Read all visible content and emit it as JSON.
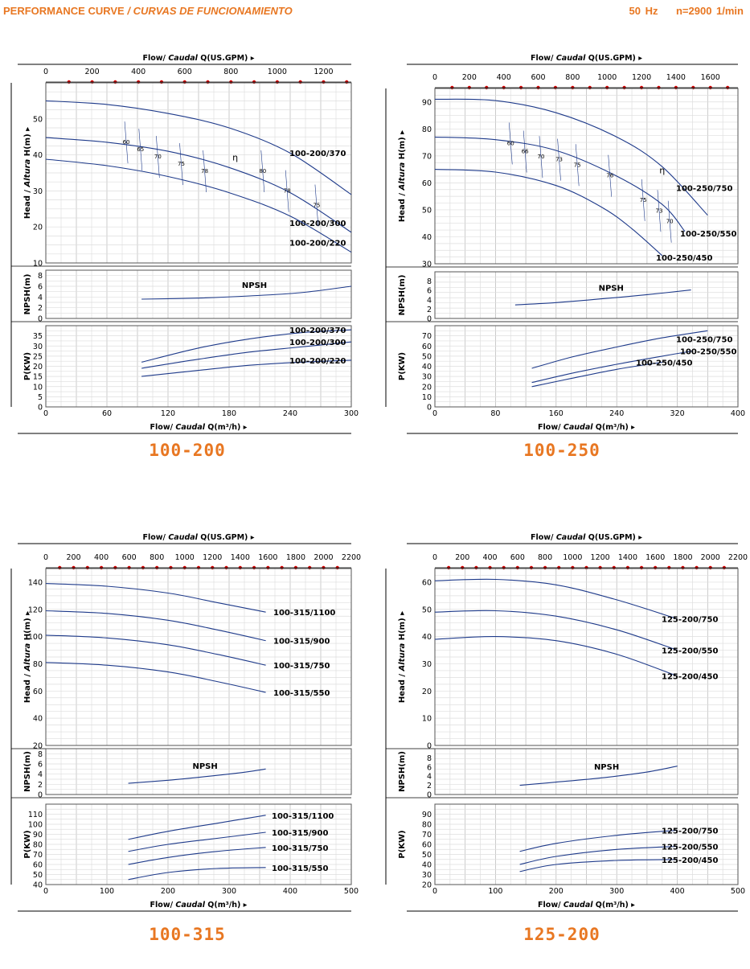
{
  "header": {
    "title": "PERFORMANCE CURVE",
    "title_es": "/ CURVAS DE FUNCIONAMIENTO",
    "freq": "50 Hz",
    "speed": "n=2900 1/min"
  },
  "labels": {
    "flow_top_prefix": "Flow/",
    "flow_top_es": "Caudal",
    "flow_top_unit": "Q(US.GPM)",
    "flow_bottom_unit": "Q(m³/h)",
    "head_prefix": "Head /",
    "head_es": "Altura",
    "head_unit": "H(m)",
    "npsh_axis": "NPSH(m)",
    "power_axis": "P(KW)",
    "npsh_curve": "NPSH"
  },
  "colors": {
    "curve": "#1e3a8a",
    "accent": "#e87722",
    "gpm_dot": "#e00000",
    "grid": "#c8c8c8"
  },
  "chart_data": [
    {
      "type": "line",
      "title": "100-200",
      "flow_m3h_range": [
        0,
        300
      ],
      "flow_m3h_ticks": [
        0,
        60,
        120,
        180,
        240,
        300
      ],
      "gpm_range": [
        0,
        1320
      ],
      "gpm_ticks": [
        0,
        200,
        400,
        600,
        800,
        1000,
        1200
      ],
      "head": {
        "ylim": [
          10,
          60
        ],
        "ticks": [
          10,
          20,
          30,
          40,
          50
        ],
        "series": [
          {
            "name": "100-200/370",
            "x": [
              0,
              60,
              120,
              180,
              240,
              300
            ],
            "y": [
              55,
              54,
              51.5,
              47.5,
              40.5,
              29
            ]
          },
          {
            "name": "100-200/300",
            "x": [
              0,
              60,
              120,
              180,
              240,
              300
            ],
            "y": [
              44.8,
              43.5,
              41,
              36.5,
              29.5,
              18.5
            ]
          },
          {
            "name": "100-200/220",
            "x": [
              0,
              60,
              120,
              180,
              240,
              300
            ],
            "y": [
              38.8,
              37,
              34,
              29.5,
              23,
              13
            ]
          }
        ],
        "efficiency_labels": [
          {
            "text": "60",
            "x": 79,
            "y": 43
          },
          {
            "text": "65",
            "x": 93,
            "y": 41
          },
          {
            "text": "70",
            "x": 110,
            "y": 39
          },
          {
            "text": "75",
            "x": 133,
            "y": 37
          },
          {
            "text": "78",
            "x": 156,
            "y": 35
          },
          {
            "text": "η",
            "x": 186,
            "y": 38.5
          },
          {
            "text": "80",
            "x": 213,
            "y": 35
          },
          {
            "text": "78",
            "x": 237,
            "y": 29.5
          },
          {
            "text": "75",
            "x": 266,
            "y": 25.5
          }
        ]
      },
      "npsh": {
        "ylim": [
          0,
          9
        ],
        "ticks": [
          0,
          2,
          4,
          6,
          8
        ],
        "x": [
          94,
          150,
          200,
          250,
          300
        ],
        "y": [
          3.6,
          3.8,
          4.2,
          4.8,
          6.0
        ]
      },
      "power": {
        "ylim": [
          0,
          40
        ],
        "ticks": [
          0,
          5,
          10,
          15,
          20,
          25,
          30,
          35
        ],
        "series": [
          {
            "name": "100-200/370",
            "x": [
              94,
              150,
              200,
              250,
              300
            ],
            "y": [
              22,
              29,
              33.5,
              36.5,
              38
            ]
          },
          {
            "name": "100-200/300",
            "x": [
              94,
              150,
              200,
              250,
              300
            ],
            "y": [
              19,
              23.5,
              27,
              29.5,
              32
            ]
          },
          {
            "name": "100-200/220",
            "x": [
              94,
              150,
              200,
              250,
              300
            ],
            "y": [
              15,
              18,
              20.5,
              22,
              23
            ]
          }
        ]
      }
    },
    {
      "type": "line",
      "title": "100-250",
      "flow_m3h_range": [
        0,
        400
      ],
      "flow_m3h_ticks": [
        0,
        80,
        160,
        240,
        320,
        400
      ],
      "gpm_range": [
        0,
        1760
      ],
      "gpm_ticks": [
        0,
        200,
        400,
        600,
        800,
        1000,
        1200,
        1400,
        1600
      ],
      "head": {
        "ylim": [
          30,
          95
        ],
        "ticks": [
          30,
          40,
          50,
          60,
          70,
          80,
          90
        ],
        "series": [
          {
            "name": "100-250/750",
            "x": [
              0,
              80,
              160,
              240,
              300,
              360
            ],
            "y": [
              91,
              90.5,
              86,
              77,
              66,
              48
            ]
          },
          {
            "name": "100-250/550",
            "x": [
              0,
              80,
              160,
              240,
              300,
              330
            ],
            "y": [
              77,
              76,
              72,
              62.5,
              52,
              42
            ]
          },
          {
            "name": "100-250/450",
            "x": [
              0,
              80,
              160,
              220,
              260,
              300
            ],
            "y": [
              65,
              64,
              59,
              51,
              43,
              33
            ]
          }
        ],
        "efficiency_labels": [
          {
            "text": "60",
            "x": 100,
            "y": 74
          },
          {
            "text": "66",
            "x": 119,
            "y": 71
          },
          {
            "text": "70",
            "x": 140,
            "y": 69
          },
          {
            "text": "73",
            "x": 164,
            "y": 68
          },
          {
            "text": "75",
            "x": 188,
            "y": 66
          },
          {
            "text": "76",
            "x": 231,
            "y": 62
          },
          {
            "text": "η",
            "x": 300,
            "y": 63.5
          },
          {
            "text": "75",
            "x": 275,
            "y": 53
          },
          {
            "text": "73",
            "x": 296,
            "y": 49
          },
          {
            "text": "70",
            "x": 310,
            "y": 45
          }
        ]
      },
      "npsh": {
        "ylim": [
          0,
          10
        ],
        "ticks": [
          0,
          2,
          4,
          6,
          8
        ],
        "x": [
          106,
          160,
          220,
          280,
          338
        ],
        "y": [
          2.9,
          3.4,
          4.2,
          5.1,
          6.1
        ]
      },
      "power": {
        "ylim": [
          0,
          80
        ],
        "ticks": [
          0,
          10,
          20,
          30,
          40,
          50,
          60,
          70
        ],
        "series": [
          {
            "name": "100-250/750",
            "x": [
              128,
              180,
              240,
              300,
              360
            ],
            "y": [
              38,
              49,
              59,
              68,
              75
            ]
          },
          {
            "name": "100-250/550",
            "x": [
              128,
              180,
              240,
              300,
              340
            ],
            "y": [
              24,
              33,
              42,
              50,
              55
            ]
          },
          {
            "name": "100-250/450",
            "x": [
              128,
              180,
              240,
              300
            ],
            "y": [
              20,
              28,
              37,
              44
            ]
          }
        ]
      }
    },
    {
      "type": "line",
      "title": "100-315",
      "flow_m3h_range": [
        0,
        500
      ],
      "flow_m3h_ticks": [
        0,
        100,
        200,
        300,
        400,
        500
      ],
      "gpm_range": [
        0,
        2200
      ],
      "gpm_ticks": [
        0,
        200,
        400,
        600,
        800,
        1000,
        1200,
        1400,
        1600,
        1800,
        2000,
        2200
      ],
      "head": {
        "ylim": [
          20,
          150
        ],
        "ticks": [
          20,
          40,
          60,
          80,
          100,
          120,
          140
        ],
        "series": [
          {
            "name": "100-315/1100",
            "x": [
              0,
              100,
              200,
              280,
              360
            ],
            "y": [
              139,
              137,
              132,
              125,
              118
            ]
          },
          {
            "name": "100-315/900",
            "x": [
              0,
              100,
              200,
              280,
              360
            ],
            "y": [
              119,
              117,
              112,
              105,
              97
            ]
          },
          {
            "name": "100-315/750",
            "x": [
              0,
              100,
              200,
              280,
              360
            ],
            "y": [
              101,
              99,
              94,
              87,
              79
            ]
          },
          {
            "name": "100-315/550",
            "x": [
              0,
              100,
              200,
              280,
              360
            ],
            "y": [
              81,
              79,
              74,
              67,
              59
            ]
          }
        ],
        "efficiency_labels": []
      },
      "npsh": {
        "ylim": [
          0,
          9
        ],
        "ticks": [
          0,
          2,
          4,
          6,
          8
        ],
        "x": [
          135,
          200,
          260,
          320,
          360
        ],
        "y": [
          2.2,
          2.8,
          3.5,
          4.3,
          5.0
        ]
      },
      "power": {
        "ylim": [
          40,
          120
        ],
        "ticks": [
          40,
          50,
          60,
          70,
          80,
          90,
          100,
          110
        ],
        "series": [
          {
            "name": "100-315/1100",
            "x": [
              135,
              200,
              280,
              360
            ],
            "y": [
              85,
              93,
              101,
              109
            ]
          },
          {
            "name": "100-315/900",
            "x": [
              135,
              200,
              280,
              360
            ],
            "y": [
              73,
              80,
              86,
              92
            ]
          },
          {
            "name": "100-315/750",
            "x": [
              135,
              200,
              280,
              360
            ],
            "y": [
              60,
              67,
              73,
              77
            ]
          },
          {
            "name": "100-315/550",
            "x": [
              135,
              200,
              280,
              360
            ],
            "y": [
              45,
              52,
              56,
              57
            ]
          }
        ]
      }
    },
    {
      "type": "line",
      "title": "125-200",
      "flow_m3h_range": [
        0,
        500
      ],
      "flow_m3h_ticks": [
        0,
        100,
        200,
        300,
        400,
        500
      ],
      "gpm_range": [
        0,
        2200
      ],
      "gpm_ticks": [
        0,
        200,
        400,
        600,
        800,
        1000,
        1200,
        1400,
        1600,
        1800,
        2000,
        2200
      ],
      "head": {
        "ylim": [
          0,
          65
        ],
        "ticks": [
          0,
          10,
          20,
          30,
          40,
          50,
          60
        ],
        "series": [
          {
            "name": "125-200/750",
            "x": [
              0,
              100,
              200,
              300,
              400
            ],
            "y": [
              60.5,
              61,
              59,
              53.5,
              46.5
            ]
          },
          {
            "name": "125-200/550",
            "x": [
              0,
              100,
              200,
              300,
              400
            ],
            "y": [
              49,
              49.5,
              47.5,
              42.5,
              35
            ]
          },
          {
            "name": "125-200/450",
            "x": [
              0,
              100,
              200,
              300,
              400
            ],
            "y": [
              39,
              40,
              38.5,
              33.5,
              25.5
            ]
          }
        ],
        "efficiency_labels": []
      },
      "npsh": {
        "ylim": [
          0,
          10
        ],
        "ticks": [
          0,
          2,
          4,
          6,
          8
        ],
        "x": [
          140,
          200,
          280,
          350,
          400
        ],
        "y": [
          2.0,
          2.7,
          3.7,
          4.9,
          6.2
        ]
      },
      "power": {
        "ylim": [
          20,
          100
        ],
        "ticks": [
          20,
          30,
          40,
          50,
          60,
          70,
          80,
          90
        ],
        "series": [
          {
            "name": "125-200/750",
            "x": [
              140,
              200,
              300,
              400
            ],
            "y": [
              53,
              61,
              69,
              74
            ]
          },
          {
            "name": "125-200/550",
            "x": [
              140,
              200,
              300,
              400
            ],
            "y": [
              40,
              48,
              55,
              58
            ]
          },
          {
            "name": "125-200/450",
            "x": [
              140,
              200,
              300,
              400
            ],
            "y": [
              33,
              40,
              44,
              45
            ]
          }
        ]
      }
    }
  ]
}
